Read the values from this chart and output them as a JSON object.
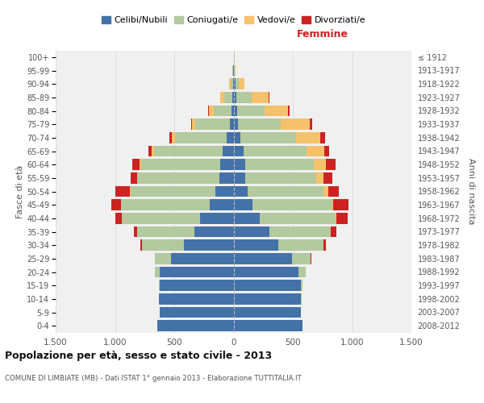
{
  "age_groups": [
    "0-4",
    "5-9",
    "10-14",
    "15-19",
    "20-24",
    "25-29",
    "30-34",
    "35-39",
    "40-44",
    "45-49",
    "50-54",
    "55-59",
    "60-64",
    "65-69",
    "70-74",
    "75-79",
    "80-84",
    "85-89",
    "90-94",
    "95-99",
    "100+"
  ],
  "birth_years": [
    "2008-2012",
    "2003-2007",
    "1998-2002",
    "1993-1997",
    "1988-1992",
    "1983-1987",
    "1978-1982",
    "1973-1977",
    "1968-1972",
    "1963-1967",
    "1958-1962",
    "1953-1957",
    "1948-1952",
    "1943-1947",
    "1938-1942",
    "1933-1937",
    "1928-1932",
    "1923-1927",
    "1918-1922",
    "1913-1917",
    "≤ 1912"
  ],
  "male_celibe": [
    640,
    620,
    630,
    620,
    620,
    530,
    420,
    330,
    280,
    200,
    150,
    120,
    110,
    90,
    60,
    30,
    20,
    10,
    5,
    2,
    0
  ],
  "male_coniugato": [
    0,
    0,
    0,
    10,
    40,
    130,
    350,
    480,
    660,
    750,
    720,
    690,
    670,
    580,
    430,
    290,
    150,
    70,
    20,
    5,
    0
  ],
  "male_vedovo": [
    0,
    0,
    0,
    0,
    0,
    0,
    0,
    0,
    0,
    0,
    5,
    5,
    15,
    20,
    30,
    30,
    40,
    30,
    15,
    5,
    0
  ],
  "male_divorziato": [
    0,
    0,
    0,
    0,
    0,
    5,
    15,
    30,
    60,
    80,
    120,
    50,
    60,
    30,
    20,
    10,
    5,
    0,
    0,
    0,
    0
  ],
  "female_nubile": [
    580,
    570,
    570,
    570,
    550,
    490,
    380,
    300,
    220,
    160,
    120,
    100,
    100,
    85,
    60,
    40,
    30,
    25,
    15,
    5,
    5
  ],
  "female_coniugata": [
    0,
    0,
    5,
    15,
    60,
    160,
    380,
    520,
    640,
    670,
    640,
    600,
    580,
    530,
    470,
    360,
    230,
    130,
    30,
    5,
    0
  ],
  "female_vedova": [
    0,
    0,
    0,
    0,
    0,
    0,
    0,
    0,
    5,
    10,
    40,
    60,
    100,
    150,
    200,
    240,
    200,
    140,
    50,
    10,
    5
  ],
  "female_divorziata": [
    0,
    0,
    0,
    0,
    0,
    5,
    20,
    50,
    100,
    130,
    90,
    70,
    80,
    40,
    40,
    20,
    10,
    5,
    0,
    0,
    0
  ],
  "color_celibe": "#4472a8",
  "color_coniugato": "#b3c99e",
  "color_vedovo": "#f5c26b",
  "color_divorziato": "#cc2222",
  "xlim": 1500,
  "title": "Popolazione per età, sesso e stato civile - 2013",
  "subtitle": "COMUNE DI LIMBIATE (MB) - Dati ISTAT 1° gennaio 2013 - Elaborazione TUTTITALIA.IT",
  "legend_labels": [
    "Celibi/Nubili",
    "Coniugati/e",
    "Vedovi/e",
    "Divorziati/e"
  ],
  "label_femmine": "Femmine",
  "label_fasce": "Fasce di età",
  "label_anni": "Anni di nascita",
  "bg_color": "#ffffff",
  "plot_bg": "#f0f0f0"
}
